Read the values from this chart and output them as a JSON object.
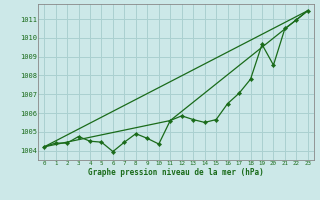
{
  "title": "Graphe pression niveau de la mer (hPa)",
  "background_color": "#cce8e8",
  "grid_color": "#aad0d0",
  "line_color": "#1a6b1a",
  "spine_color": "#888888",
  "xlim": [
    -0.5,
    23.5
  ],
  "ylim": [
    1003.5,
    1011.8
  ],
  "yticks": [
    1004,
    1005,
    1006,
    1007,
    1008,
    1009,
    1010,
    1011
  ],
  "xticks": [
    0,
    1,
    2,
    3,
    4,
    5,
    6,
    7,
    8,
    9,
    10,
    11,
    12,
    13,
    14,
    15,
    16,
    17,
    18,
    19,
    20,
    21,
    22,
    23
  ],
  "line1_x": [
    0,
    1,
    2,
    3,
    4,
    5,
    6,
    7,
    8,
    9,
    10,
    11,
    12,
    13,
    14,
    15,
    16,
    17,
    18,
    19,
    20,
    21,
    22,
    23
  ],
  "line1_y": [
    1004.2,
    1004.4,
    1004.4,
    1004.75,
    1004.5,
    1004.45,
    1003.95,
    1004.45,
    1004.9,
    1004.65,
    1004.35,
    1005.6,
    1005.85,
    1005.65,
    1005.5,
    1005.65,
    1006.5,
    1007.05,
    1007.8,
    1009.65,
    1008.55,
    1010.5,
    1010.95,
    1011.45
  ],
  "line2_x": [
    0,
    23
  ],
  "line2_y": [
    1004.2,
    1011.45
  ],
  "line3_x": [
    0,
    11,
    23
  ],
  "line3_y": [
    1004.2,
    1005.6,
    1011.45
  ]
}
